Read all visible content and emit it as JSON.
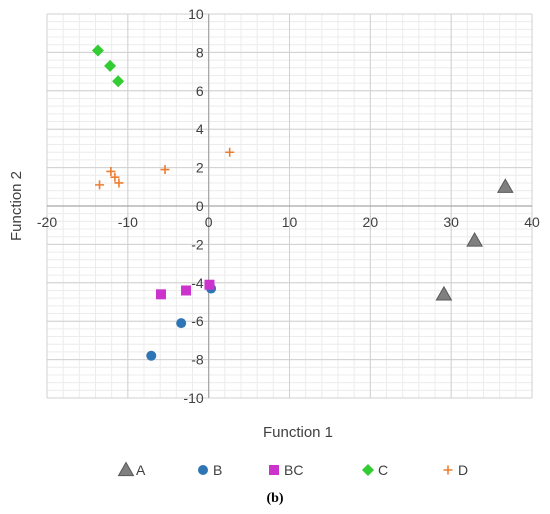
{
  "caption": "(b)",
  "chart_data": {
    "type": "scatter",
    "xlabel": "Function 1",
    "ylabel": "Function 2",
    "xlim": [
      -20,
      40
    ],
    "ylim": [
      -10,
      10
    ],
    "x_ticks": [
      -20,
      -10,
      0,
      10,
      20,
      30,
      40
    ],
    "y_ticks": [
      -10,
      -8,
      -6,
      -4,
      -2,
      0,
      2,
      4,
      6,
      8,
      10
    ],
    "grid": true,
    "minor_grid": true,
    "legend_position": "bottom",
    "series": [
      {
        "name": "A",
        "marker": "triangle",
        "color": "#7f7f7f",
        "points": [
          [
            36.7,
            1.0
          ],
          [
            32.9,
            -1.8
          ],
          [
            29.1,
            -4.6
          ]
        ]
      },
      {
        "name": "B",
        "marker": "circle",
        "color": "#2e75b6",
        "points": [
          [
            0.3,
            -4.3
          ],
          [
            -3.4,
            -6.1
          ],
          [
            -7.1,
            -7.8
          ]
        ]
      },
      {
        "name": "BC",
        "marker": "square",
        "color": "#cc33cc",
        "points": [
          [
            0.1,
            -4.1
          ],
          [
            -2.8,
            -4.4
          ],
          [
            -5.9,
            -4.6
          ]
        ]
      },
      {
        "name": "C",
        "marker": "diamond",
        "color": "#33cc33",
        "points": [
          [
            -13.7,
            8.1
          ],
          [
            -12.2,
            7.3
          ],
          [
            -11.2,
            6.5
          ]
        ]
      },
      {
        "name": "D",
        "marker": "plus",
        "color": "#ed7d31",
        "points": [
          [
            2.6,
            2.8
          ],
          [
            -5.4,
            1.9
          ],
          [
            -12.1,
            1.8
          ],
          [
            -11.6,
            1.5
          ],
          [
            -11.1,
            1.2
          ],
          [
            -13.5,
            1.1
          ]
        ]
      }
    ]
  }
}
